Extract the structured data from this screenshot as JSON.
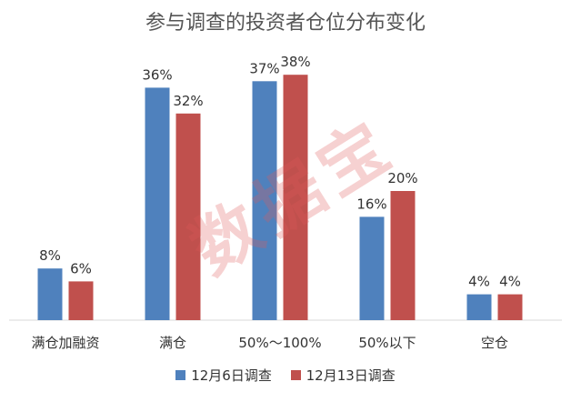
{
  "chart_data": {
    "type": "bar",
    "title": "参与调查的投资者仓位分布变化",
    "categories": [
      "满仓加融资",
      "满仓",
      "50%～100%",
      "50%以下",
      "空仓"
    ],
    "series": [
      {
        "name": "12月6日调查",
        "values": [
          8,
          36,
          37,
          16,
          4
        ],
        "labels": [
          "8%",
          "36%",
          "37%",
          "16%",
          "4%"
        ],
        "color": "#4F81BD"
      },
      {
        "name": "12月13日调查",
        "values": [
          6,
          32,
          38,
          20,
          4
        ],
        "labels": [
          "6%",
          "32%",
          "38%",
          "20%",
          "4%"
        ],
        "color": "#C0504D"
      }
    ],
    "ylim": [
      0,
      40
    ],
    "xlabel": "",
    "ylabel": "",
    "grid": false,
    "legend_position": "bottom"
  },
  "watermark": "数据宝"
}
